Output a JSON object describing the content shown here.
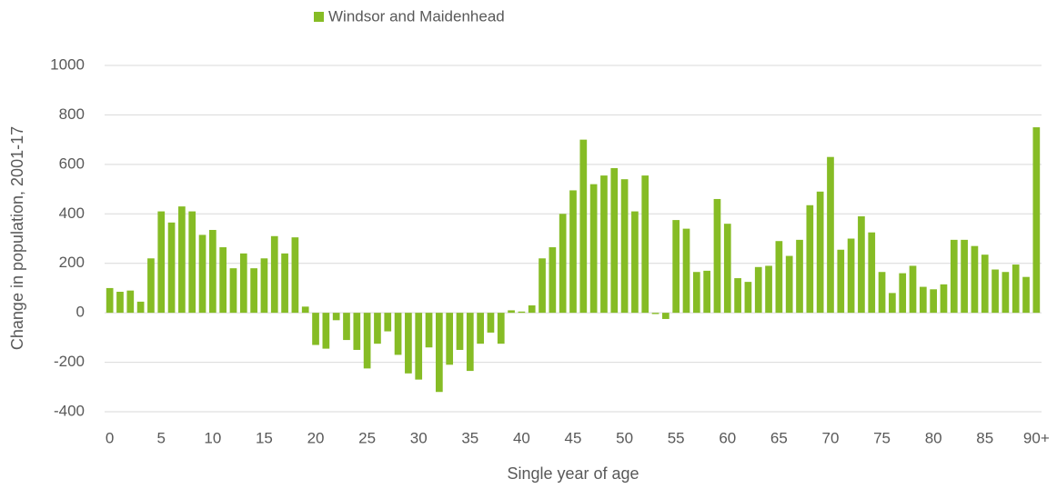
{
  "chart_data": {
    "type": "bar",
    "x_label": "Single year of age",
    "y_label": "Change in population, 2001-17",
    "categories": [
      "0",
      null,
      null,
      null,
      null,
      "5",
      null,
      null,
      null,
      null,
      "10",
      null,
      null,
      null,
      null,
      "15",
      null,
      null,
      null,
      null,
      "20",
      null,
      null,
      null,
      null,
      "25",
      null,
      null,
      null,
      null,
      "30",
      null,
      null,
      null,
      null,
      "35",
      null,
      null,
      null,
      null,
      "40",
      null,
      null,
      null,
      null,
      "45",
      null,
      null,
      null,
      null,
      "50",
      null,
      null,
      null,
      null,
      "55",
      null,
      null,
      null,
      null,
      "60",
      null,
      null,
      null,
      null,
      "65",
      null,
      null,
      null,
      null,
      "70",
      null,
      null,
      null,
      null,
      "75",
      null,
      null,
      null,
      null,
      "80",
      null,
      null,
      null,
      null,
      "85",
      null,
      null,
      null,
      null,
      "90+"
    ],
    "series": [
      {
        "name": "Windsor and Maidenhead",
        "color": "#86bc25",
        "values": [
          100,
          85,
          90,
          45,
          220,
          410,
          365,
          430,
          410,
          315,
          335,
          265,
          180,
          240,
          180,
          220,
          310,
          240,
          305,
          25,
          -130,
          -145,
          -30,
          -110,
          -150,
          -225,
          -125,
          -75,
          -170,
          -245,
          -270,
          -140,
          -320,
          -210,
          -150,
          -235,
          -125,
          -80,
          -125,
          10,
          5,
          30,
          220,
          265,
          400,
          495,
          700,
          520,
          555,
          585,
          540,
          410,
          555,
          -5,
          -25,
          375,
          340,
          165,
          170,
          460,
          360,
          140,
          125,
          185,
          190,
          290,
          230,
          295,
          435,
          490,
          630,
          255,
          300,
          390,
          325,
          165,
          80,
          160,
          190,
          105,
          95,
          115,
          295,
          295,
          270,
          235,
          175,
          165,
          195,
          145,
          750
        ]
      }
    ],
    "ylim": [
      -400,
      1000
    ],
    "yticks": [
      -400,
      -200,
      0,
      200,
      400,
      600,
      800,
      1000
    ],
    "grid": true,
    "legend": "top"
  }
}
